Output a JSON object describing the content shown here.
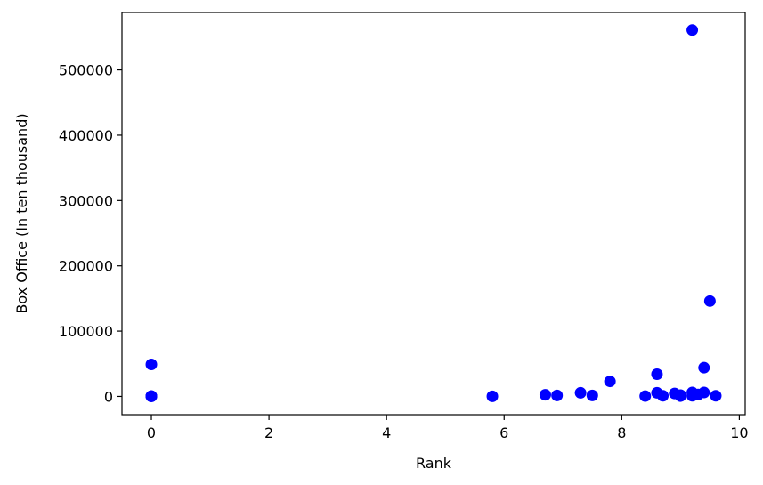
{
  "chart_data": {
    "type": "scatter",
    "title": "",
    "xlabel": "Rank",
    "ylabel": "Box Office (In ten thousand)",
    "xlim": [
      -0.5,
      10.1
    ],
    "ylim": [
      -28000,
      588000
    ],
    "xticks": [
      0,
      2,
      4,
      6,
      8,
      10
    ],
    "xtick_labels": [
      "0",
      "2",
      "4",
      "6",
      "8",
      "10"
    ],
    "yticks": [
      0,
      100000,
      200000,
      300000,
      400000,
      500000
    ],
    "ytick_labels": [
      "0",
      "100000",
      "200000",
      "300000",
      "400000",
      "500000"
    ],
    "grid": false,
    "legend": "none",
    "series": [
      {
        "color": "#0000ff",
        "points": [
          [
            0,
            49000
          ],
          [
            0,
            200
          ],
          [
            0,
            500
          ],
          [
            0,
            100
          ],
          [
            0,
            300
          ],
          [
            5.8,
            100
          ],
          [
            6.7,
            2500
          ],
          [
            6.9,
            1500
          ],
          [
            7.3,
            5500
          ],
          [
            7.5,
            1500
          ],
          [
            7.8,
            23000
          ],
          [
            8.4,
            500
          ],
          [
            8.6,
            34000
          ],
          [
            8.6,
            5500
          ],
          [
            8.7,
            1000
          ],
          [
            8.9,
            4500
          ],
          [
            9.0,
            2000
          ],
          [
            9.0,
            500
          ],
          [
            9.2,
            561000
          ],
          [
            9.2,
            6000
          ],
          [
            9.2,
            1000
          ],
          [
            9.3,
            3000
          ],
          [
            9.4,
            6000
          ],
          [
            9.4,
            44000
          ],
          [
            9.5,
            146000
          ],
          [
            9.6,
            1000
          ]
        ]
      }
    ]
  }
}
